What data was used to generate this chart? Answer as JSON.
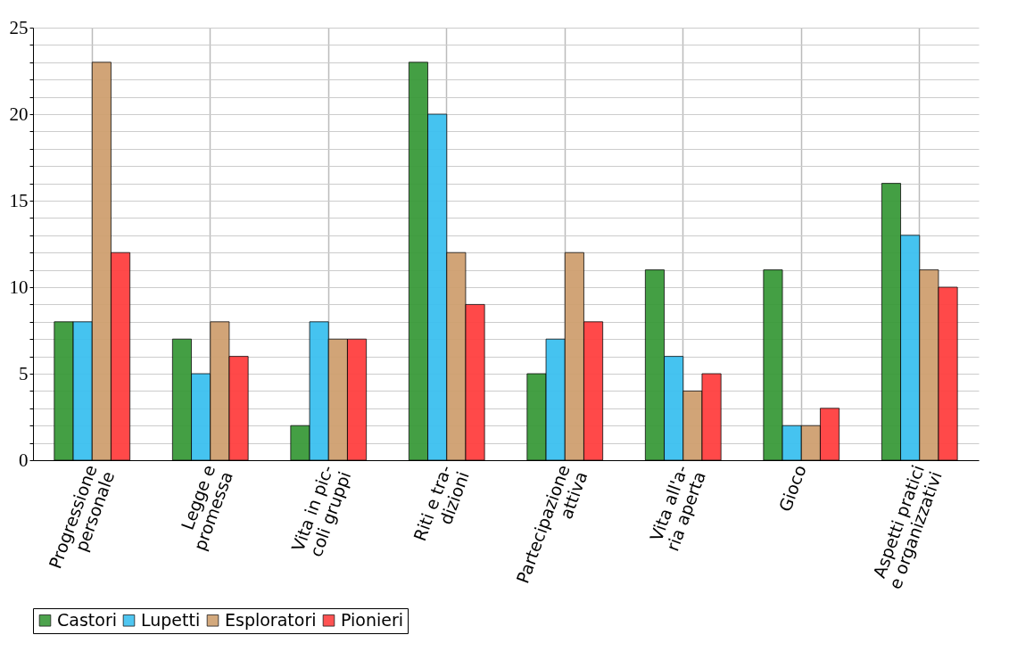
{
  "chart_data": {
    "type": "bar",
    "categories": [
      "Progressione\npersonale",
      "Legge e\npromessa",
      "Vita in pic-\ncoli gruppi",
      "Riti e tra-\ndizioni",
      "Partecipazione\nattiva",
      "Vita all'a-\nria aperta",
      "Gioco",
      "Aspetti pratici\ne organizzativi"
    ],
    "series": [
      {
        "name": "Castori",
        "color": "#3a9a3a",
        "values": [
          8,
          7,
          2,
          23,
          5,
          11,
          11,
          16
        ]
      },
      {
        "name": "Lupetti",
        "color": "#3cc0f0",
        "values": [
          8,
          5,
          8,
          20,
          7,
          6,
          2,
          13
        ]
      },
      {
        "name": "Esploratori",
        "color": "#cfa070",
        "values": [
          23,
          8,
          7,
          12,
          12,
          4,
          2,
          11
        ]
      },
      {
        "name": "Pionieri",
        "color": "#ff4040",
        "values": [
          12,
          6,
          7,
          9,
          8,
          5,
          3,
          10
        ]
      }
    ],
    "ylim": [
      0,
      25
    ],
    "yticks": [
      0,
      {
        "value": 1,
        "label": null
      },
      {
        "value": 2,
        "label": null
      },
      {
        "value": 3,
        "label": null
      },
      {
        "value": 4,
        "label": null
      },
      5,
      {
        "value": 6,
        "label": null
      },
      {
        "value": 7,
        "label": null
      },
      {
        "value": 8,
        "label": null
      },
      {
        "value": 9,
        "label": null
      },
      10,
      {
        "value": 11,
        "label": null
      },
      {
        "value": 12,
        "label": null
      },
      {
        "value": 13,
        "label": null
      },
      {
        "value": 14,
        "label": null
      },
      15,
      {
        "value": 16,
        "label": null
      },
      {
        "value": 17,
        "label": null
      },
      {
        "value": 18,
        "label": null
      },
      {
        "value": 19,
        "label": null
      },
      20,
      {
        "value": 21,
        "label": null
      },
      {
        "value": 22,
        "label": null
      },
      {
        "value": 23,
        "label": null
      },
      {
        "value": 24,
        "label": null
      },
      25
    ],
    "grid": true,
    "legend": "bottom"
  }
}
